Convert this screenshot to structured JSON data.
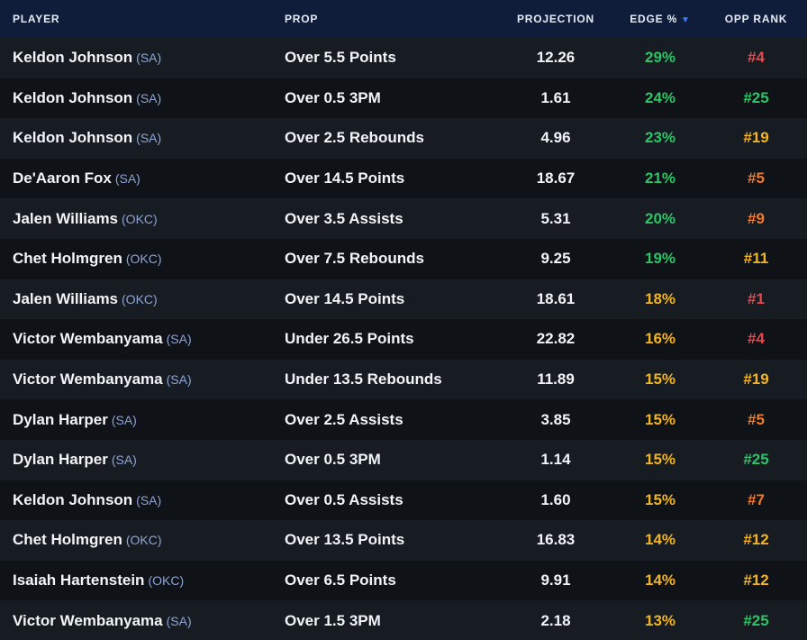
{
  "headers": {
    "player": "PLAYER",
    "prop": "PROP",
    "projection": "PROJECTION",
    "edge": "EDGE %",
    "opp_rank": "OPP RANK"
  },
  "sort_icon": {
    "name": "sort-desc-icon",
    "glyph": "▼",
    "color": "#3b7bff"
  },
  "colors": {
    "green": "#2fc367",
    "yellow": "#f0b426",
    "orange": "#f07a2a",
    "red": "#e9474d",
    "team": "#8ea4d6",
    "header_bg": "#0f1d3a"
  },
  "rows": [
    {
      "player": "Keldon Johnson",
      "team": "(SA)",
      "prop": "Over 5.5 Points",
      "projection": "12.26",
      "edge": "29%",
      "edge_color": "green",
      "opp_rank": "#4",
      "opp_color": "red"
    },
    {
      "player": "Keldon Johnson",
      "team": "(SA)",
      "prop": "Over 0.5 3PM",
      "projection": "1.61",
      "edge": "24%",
      "edge_color": "green",
      "opp_rank": "#25",
      "opp_color": "green"
    },
    {
      "player": "Keldon Johnson",
      "team": "(SA)",
      "prop": "Over 2.5 Rebounds",
      "projection": "4.96",
      "edge": "23%",
      "edge_color": "green",
      "opp_rank": "#19",
      "opp_color": "yellow"
    },
    {
      "player": "De'Aaron Fox",
      "team": "(SA)",
      "prop": "Over 14.5 Points",
      "projection": "18.67",
      "edge": "21%",
      "edge_color": "green",
      "opp_rank": "#5",
      "opp_color": "orange"
    },
    {
      "player": "Jalen Williams",
      "team": "(OKC)",
      "prop": "Over 3.5 Assists",
      "projection": "5.31",
      "edge": "20%",
      "edge_color": "green",
      "opp_rank": "#9",
      "opp_color": "orange"
    },
    {
      "player": "Chet Holmgren",
      "team": "(OKC)",
      "prop": "Over 7.5 Rebounds",
      "projection": "9.25",
      "edge": "19%",
      "edge_color": "green",
      "opp_rank": "#11",
      "opp_color": "yellow"
    },
    {
      "player": "Jalen Williams",
      "team": "(OKC)",
      "prop": "Over 14.5 Points",
      "projection": "18.61",
      "edge": "18%",
      "edge_color": "yellow",
      "opp_rank": "#1",
      "opp_color": "red"
    },
    {
      "player": "Victor Wembanyama",
      "team": "(SA)",
      "prop": "Under 26.5 Points",
      "projection": "22.82",
      "edge": "16%",
      "edge_color": "yellow",
      "opp_rank": "#4",
      "opp_color": "red"
    },
    {
      "player": "Victor Wembanyama",
      "team": "(SA)",
      "prop": "Under 13.5 Rebounds",
      "projection": "11.89",
      "edge": "15%",
      "edge_color": "yellow",
      "opp_rank": "#19",
      "opp_color": "yellow"
    },
    {
      "player": "Dylan Harper",
      "team": "(SA)",
      "prop": "Over 2.5 Assists",
      "projection": "3.85",
      "edge": "15%",
      "edge_color": "yellow",
      "opp_rank": "#5",
      "opp_color": "orange"
    },
    {
      "player": "Dylan Harper",
      "team": "(SA)",
      "prop": "Over 0.5 3PM",
      "projection": "1.14",
      "edge": "15%",
      "edge_color": "yellow",
      "opp_rank": "#25",
      "opp_color": "green"
    },
    {
      "player": "Keldon Johnson",
      "team": "(SA)",
      "prop": "Over 0.5 Assists",
      "projection": "1.60",
      "edge": "15%",
      "edge_color": "yellow",
      "opp_rank": "#7",
      "opp_color": "orange"
    },
    {
      "player": "Chet Holmgren",
      "team": "(OKC)",
      "prop": "Over 13.5 Points",
      "projection": "16.83",
      "edge": "14%",
      "edge_color": "yellow",
      "opp_rank": "#12",
      "opp_color": "yellow"
    },
    {
      "player": "Isaiah Hartenstein",
      "team": "(OKC)",
      "prop": "Over 6.5 Points",
      "projection": "9.91",
      "edge": "14%",
      "edge_color": "yellow",
      "opp_rank": "#12",
      "opp_color": "yellow"
    },
    {
      "player": "Victor Wembanyama",
      "team": "(SA)",
      "prop": "Over 1.5 3PM",
      "projection": "2.18",
      "edge": "13%",
      "edge_color": "yellow",
      "opp_rank": "#25",
      "opp_color": "green"
    }
  ]
}
